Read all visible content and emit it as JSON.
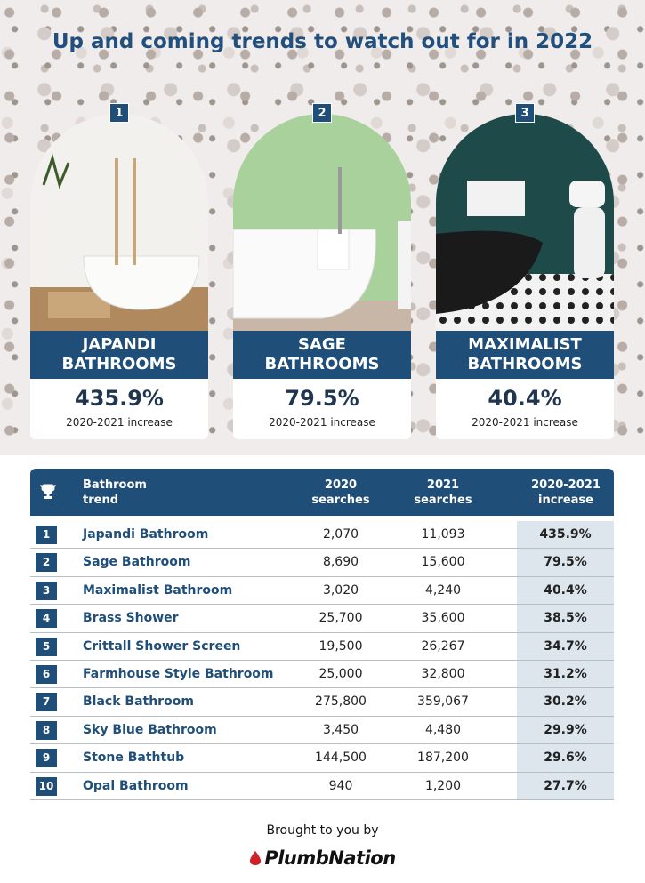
{
  "title": "Up and coming trends to watch out for in 2022",
  "cards": [
    {
      "rank": "1",
      "label": "JAPANDI BATHROOMS",
      "value": "435.9%",
      "caption": "2020-2021 increase"
    },
    {
      "rank": "2",
      "label": "SAGE BATHROOMS",
      "value": "79.5%",
      "caption": "2020-2021 increase"
    },
    {
      "rank": "3",
      "label": "MAXIMALIST BATHROOMS",
      "value": "40.4%",
      "caption": "2020-2021 increase"
    }
  ],
  "table": {
    "header": [
      "Bathroom trend",
      "2020 searches",
      "2021 searches",
      "2020-2021 increase"
    ],
    "rows": [
      [
        "1",
        "Japandi Bathroom",
        "2,070",
        "11,093",
        "435.9%"
      ],
      [
        "2",
        "Sage Bathroom",
        "8,690",
        "15,600",
        "79.5%"
      ],
      [
        "3",
        "Maximalist Bathroom",
        "3,020",
        "4,240",
        "40.4%"
      ],
      [
        "4",
        "Brass Shower",
        "25,700",
        "35,600",
        "38.5%"
      ],
      [
        "5",
        "Crittall Shower Screen",
        "19,500",
        "26,267",
        "34.7%"
      ],
      [
        "6",
        "Farmhouse Style Bathroom",
        "25,000",
        "32,800",
        "31.2%"
      ],
      [
        "7",
        "Black Bathroom",
        "275,800",
        "359,067",
        "30.2%"
      ],
      [
        "8",
        "Sky Blue Bathroom",
        "3,450",
        "4,480",
        "29.9%"
      ],
      [
        "9",
        "Stone Bathtub",
        "144,500",
        "187,200",
        "29.6%"
      ],
      [
        "10",
        "Opal Bathroom",
        "940",
        "1,200",
        "27.7%"
      ]
    ]
  },
  "footer": {
    "text": "Brought to you by",
    "brand": "PlumbNation"
  }
}
